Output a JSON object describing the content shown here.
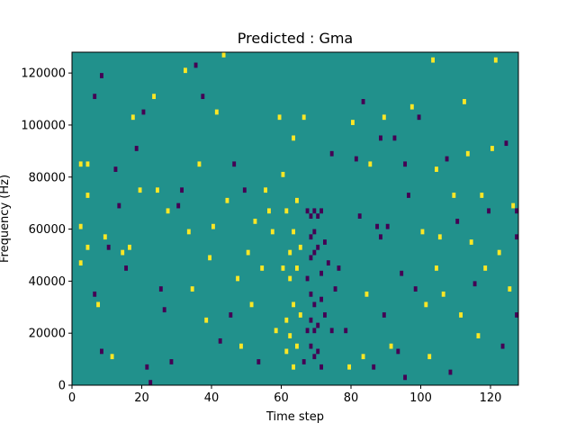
{
  "chart_data": {
    "type": "heatmap",
    "title": "Predicted : Gma",
    "xlabel": "Time step",
    "ylabel": "Frequency (Hz)",
    "xlim": [
      0,
      128
    ],
    "ylim": [
      0,
      128000
    ],
    "x_ticks": [
      {
        "value": 0,
        "label": "0"
      },
      {
        "value": 20,
        "label": "20"
      },
      {
        "value": 40,
        "label": "40"
      },
      {
        "value": 60,
        "label": "60"
      },
      {
        "value": 80,
        "label": "80"
      },
      {
        "value": 100,
        "label": "100"
      },
      {
        "value": 120,
        "label": "120"
      }
    ],
    "y_ticks": [
      {
        "value": 0,
        "label": "0"
      },
      {
        "value": 20000,
        "label": "20000"
      },
      {
        "value": 40000,
        "label": "40000"
      },
      {
        "value": 60000,
        "label": "60000"
      },
      {
        "value": 80000,
        "label": "80000"
      },
      {
        "value": 100000,
        "label": "100000"
      },
      {
        "value": 120000,
        "label": "120000"
      }
    ],
    "colormap": {
      "background": "#21918c",
      "high": "#fde725",
      "low": "#440154"
    },
    "bin_height_hz": 2000,
    "background_value": 0,
    "cells": [
      {
        "x": 2,
        "y": 84000,
        "v": 1
      },
      {
        "x": 2,
        "y": 60000,
        "v": 1
      },
      {
        "x": 2,
        "y": 46000,
        "v": 1
      },
      {
        "x": 4,
        "y": 84000,
        "v": 1
      },
      {
        "x": 4,
        "y": 72000,
        "v": 1
      },
      {
        "x": 4,
        "y": 52000,
        "v": 1
      },
      {
        "x": 6,
        "y": 110000,
        "v": -1
      },
      {
        "x": 6,
        "y": 34000,
        "v": -1
      },
      {
        "x": 7,
        "y": 30000,
        "v": 1
      },
      {
        "x": 8,
        "y": 118000,
        "v": -1
      },
      {
        "x": 8,
        "y": 12000,
        "v": -1
      },
      {
        "x": 9,
        "y": 56000,
        "v": 1
      },
      {
        "x": 10,
        "y": 52000,
        "v": -1
      },
      {
        "x": 11,
        "y": 10000,
        "v": 1
      },
      {
        "x": 12,
        "y": 82000,
        "v": -1
      },
      {
        "x": 13,
        "y": 68000,
        "v": -1
      },
      {
        "x": 14,
        "y": 50000,
        "v": 1
      },
      {
        "x": 15,
        "y": 44000,
        "v": -1
      },
      {
        "x": 16,
        "y": 52000,
        "v": 1
      },
      {
        "x": 17,
        "y": 102000,
        "v": 1
      },
      {
        "x": 18,
        "y": 90000,
        "v": -1
      },
      {
        "x": 19,
        "y": 74000,
        "v": 1
      },
      {
        "x": 20,
        "y": 104000,
        "v": -1
      },
      {
        "x": 21,
        "y": 6000,
        "v": -1
      },
      {
        "x": 22,
        "y": 0,
        "v": -1
      },
      {
        "x": 23,
        "y": 110000,
        "v": 1
      },
      {
        "x": 24,
        "y": 74000,
        "v": 1
      },
      {
        "x": 25,
        "y": 36000,
        "v": -1
      },
      {
        "x": 26,
        "y": 28000,
        "v": -1
      },
      {
        "x": 27,
        "y": 66000,
        "v": 1
      },
      {
        "x": 28,
        "y": 8000,
        "v": -1
      },
      {
        "x": 30,
        "y": 68000,
        "v": -1
      },
      {
        "x": 31,
        "y": 74000,
        "v": -1
      },
      {
        "x": 32,
        "y": 120000,
        "v": 1
      },
      {
        "x": 33,
        "y": 58000,
        "v": 1
      },
      {
        "x": 34,
        "y": 36000,
        "v": 1
      },
      {
        "x": 35,
        "y": 122000,
        "v": -1
      },
      {
        "x": 36,
        "y": 84000,
        "v": 1
      },
      {
        "x": 37,
        "y": 110000,
        "v": -1
      },
      {
        "x": 38,
        "y": 24000,
        "v": 1
      },
      {
        "x": 39,
        "y": 48000,
        "v": 1
      },
      {
        "x": 40,
        "y": 60000,
        "v": 1
      },
      {
        "x": 41,
        "y": 104000,
        "v": 1
      },
      {
        "x": 42,
        "y": 16000,
        "v": -1
      },
      {
        "x": 43,
        "y": 126000,
        "v": 1
      },
      {
        "x": 44,
        "y": 70000,
        "v": 1
      },
      {
        "x": 45,
        "y": 26000,
        "v": -1
      },
      {
        "x": 46,
        "y": 84000,
        "v": -1
      },
      {
        "x": 47,
        "y": 40000,
        "v": 1
      },
      {
        "x": 48,
        "y": 14000,
        "v": 1
      },
      {
        "x": 49,
        "y": 74000,
        "v": -1
      },
      {
        "x": 50,
        "y": 50000,
        "v": 1
      },
      {
        "x": 51,
        "y": 30000,
        "v": 1
      },
      {
        "x": 52,
        "y": 62000,
        "v": 1
      },
      {
        "x": 53,
        "y": 8000,
        "v": -1
      },
      {
        "x": 54,
        "y": 44000,
        "v": 1
      },
      {
        "x": 55,
        "y": 74000,
        "v": 1
      },
      {
        "x": 56,
        "y": 66000,
        "v": 1
      },
      {
        "x": 57,
        "y": 58000,
        "v": 1
      },
      {
        "x": 58,
        "y": 20000,
        "v": 1
      },
      {
        "x": 59,
        "y": 102000,
        "v": 1
      },
      {
        "x": 60,
        "y": 80000,
        "v": 1
      },
      {
        "x": 60,
        "y": 44000,
        "v": 1
      },
      {
        "x": 61,
        "y": 66000,
        "v": 1
      },
      {
        "x": 61,
        "y": 24000,
        "v": 1
      },
      {
        "x": 61,
        "y": 12000,
        "v": 1
      },
      {
        "x": 62,
        "y": 50000,
        "v": 1
      },
      {
        "x": 62,
        "y": 40000,
        "v": 1
      },
      {
        "x": 62,
        "y": 18000,
        "v": 1
      },
      {
        "x": 63,
        "y": 94000,
        "v": 1
      },
      {
        "x": 63,
        "y": 58000,
        "v": 1
      },
      {
        "x": 63,
        "y": 30000,
        "v": 1
      },
      {
        "x": 63,
        "y": 6000,
        "v": 1
      },
      {
        "x": 64,
        "y": 70000,
        "v": 1
      },
      {
        "x": 64,
        "y": 44000,
        "v": 1
      },
      {
        "x": 64,
        "y": 14000,
        "v": 1
      },
      {
        "x": 65,
        "y": 52000,
        "v": 1
      },
      {
        "x": 65,
        "y": 26000,
        "v": 1
      },
      {
        "x": 66,
        "y": 102000,
        "v": 1
      },
      {
        "x": 66,
        "y": 8000,
        "v": -1
      },
      {
        "x": 67,
        "y": 66000,
        "v": -1
      },
      {
        "x": 67,
        "y": 40000,
        "v": -1
      },
      {
        "x": 67,
        "y": 20000,
        "v": -1
      },
      {
        "x": 68,
        "y": 64000,
        "v": -1
      },
      {
        "x": 68,
        "y": 56000,
        "v": -1
      },
      {
        "x": 68,
        "y": 48000,
        "v": -1
      },
      {
        "x": 68,
        "y": 34000,
        "v": -1
      },
      {
        "x": 68,
        "y": 24000,
        "v": -1
      },
      {
        "x": 68,
        "y": 14000,
        "v": -1
      },
      {
        "x": 69,
        "y": 66000,
        "v": -1
      },
      {
        "x": 69,
        "y": 58000,
        "v": -1
      },
      {
        "x": 69,
        "y": 50000,
        "v": -1
      },
      {
        "x": 69,
        "y": 30000,
        "v": -1
      },
      {
        "x": 69,
        "y": 20000,
        "v": -1
      },
      {
        "x": 69,
        "y": 10000,
        "v": -1
      },
      {
        "x": 70,
        "y": 64000,
        "v": -1
      },
      {
        "x": 70,
        "y": 52000,
        "v": -1
      },
      {
        "x": 70,
        "y": 22000,
        "v": -1
      },
      {
        "x": 70,
        "y": 12000,
        "v": -1
      },
      {
        "x": 71,
        "y": 66000,
        "v": -1
      },
      {
        "x": 71,
        "y": 42000,
        "v": -1
      },
      {
        "x": 71,
        "y": 32000,
        "v": -1
      },
      {
        "x": 71,
        "y": 6000,
        "v": -1
      },
      {
        "x": 72,
        "y": 54000,
        "v": -1
      },
      {
        "x": 72,
        "y": 26000,
        "v": -1
      },
      {
        "x": 73,
        "y": 46000,
        "v": -1
      },
      {
        "x": 74,
        "y": 88000,
        "v": -1
      },
      {
        "x": 74,
        "y": 20000,
        "v": -1
      },
      {
        "x": 75,
        "y": 36000,
        "v": -1
      },
      {
        "x": 76,
        "y": 44000,
        "v": -1
      },
      {
        "x": 78,
        "y": 20000,
        "v": -1
      },
      {
        "x": 79,
        "y": 6000,
        "v": 1
      },
      {
        "x": 80,
        "y": 100000,
        "v": 1
      },
      {
        "x": 81,
        "y": 86000,
        "v": -1
      },
      {
        "x": 82,
        "y": 64000,
        "v": -1
      },
      {
        "x": 83,
        "y": 108000,
        "v": -1
      },
      {
        "x": 83,
        "y": 10000,
        "v": 1
      },
      {
        "x": 84,
        "y": 34000,
        "v": 1
      },
      {
        "x": 85,
        "y": 84000,
        "v": 1
      },
      {
        "x": 86,
        "y": 6000,
        "v": -1
      },
      {
        "x": 87,
        "y": 60000,
        "v": -1
      },
      {
        "x": 88,
        "y": 94000,
        "v": -1
      },
      {
        "x": 88,
        "y": 56000,
        "v": -1
      },
      {
        "x": 89,
        "y": 102000,
        "v": 1
      },
      {
        "x": 89,
        "y": 26000,
        "v": -1
      },
      {
        "x": 90,
        "y": 60000,
        "v": -1
      },
      {
        "x": 91,
        "y": 14000,
        "v": 1
      },
      {
        "x": 92,
        "y": 94000,
        "v": -1
      },
      {
        "x": 93,
        "y": 12000,
        "v": -1
      },
      {
        "x": 94,
        "y": 42000,
        "v": -1
      },
      {
        "x": 95,
        "y": 84000,
        "v": -1
      },
      {
        "x": 95,
        "y": 2000,
        "v": -1
      },
      {
        "x": 96,
        "y": 72000,
        "v": -1
      },
      {
        "x": 97,
        "y": 106000,
        "v": 1
      },
      {
        "x": 98,
        "y": 36000,
        "v": -1
      },
      {
        "x": 99,
        "y": 102000,
        "v": -1
      },
      {
        "x": 100,
        "y": 58000,
        "v": 1
      },
      {
        "x": 101,
        "y": 30000,
        "v": 1
      },
      {
        "x": 102,
        "y": 10000,
        "v": 1
      },
      {
        "x": 103,
        "y": 124000,
        "v": 1
      },
      {
        "x": 104,
        "y": 82000,
        "v": 1
      },
      {
        "x": 104,
        "y": 44000,
        "v": 1
      },
      {
        "x": 105,
        "y": 56000,
        "v": 1
      },
      {
        "x": 106,
        "y": 34000,
        "v": 1
      },
      {
        "x": 107,
        "y": 86000,
        "v": -1
      },
      {
        "x": 108,
        "y": 4000,
        "v": -1
      },
      {
        "x": 109,
        "y": 72000,
        "v": 1
      },
      {
        "x": 110,
        "y": 62000,
        "v": -1
      },
      {
        "x": 111,
        "y": 26000,
        "v": 1
      },
      {
        "x": 112,
        "y": 108000,
        "v": 1
      },
      {
        "x": 113,
        "y": 88000,
        "v": 1
      },
      {
        "x": 114,
        "y": 54000,
        "v": 1
      },
      {
        "x": 115,
        "y": 38000,
        "v": -1
      },
      {
        "x": 116,
        "y": 18000,
        "v": 1
      },
      {
        "x": 117,
        "y": 72000,
        "v": 1
      },
      {
        "x": 118,
        "y": 44000,
        "v": 1
      },
      {
        "x": 119,
        "y": 66000,
        "v": -1
      },
      {
        "x": 120,
        "y": 90000,
        "v": 1
      },
      {
        "x": 121,
        "y": 124000,
        "v": 1
      },
      {
        "x": 122,
        "y": 50000,
        "v": 1
      },
      {
        "x": 123,
        "y": 14000,
        "v": -1
      },
      {
        "x": 124,
        "y": 92000,
        "v": -1
      },
      {
        "x": 125,
        "y": 36000,
        "v": 1
      },
      {
        "x": 126,
        "y": 68000,
        "v": 1
      },
      {
        "x": 127,
        "y": 56000,
        "v": -1
      },
      {
        "x": 127,
        "y": 26000,
        "v": -1
      },
      {
        "x": 127,
        "y": 66000,
        "v": -1
      }
    ]
  }
}
